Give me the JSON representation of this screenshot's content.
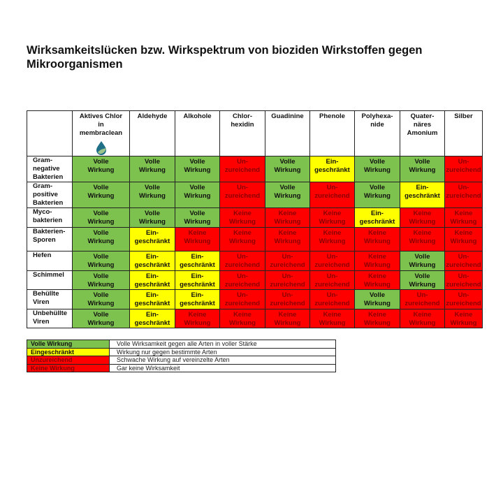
{
  "title": "Wirksamkeitslücken bzw. Wirkspektrum von bioziden Wirkstoffen gegen Mikroorganismen",
  "columns": [
    {
      "label": [
        "Aktives Chlor",
        "in",
        "membraclean"
      ],
      "logo": "water-drop-leaf-icon"
    },
    {
      "label": [
        "Aldehyde"
      ]
    },
    {
      "label": [
        "Alkohole"
      ]
    },
    {
      "label": [
        "Chlor-",
        "hexidin"
      ]
    },
    {
      "label": [
        "Guadinine"
      ]
    },
    {
      "label": [
        "Phenole"
      ]
    },
    {
      "label": [
        "Polyhexa-",
        "nide"
      ]
    },
    {
      "label": [
        "Quater-",
        "näres",
        "Amonium"
      ]
    },
    {
      "label": [
        "Silber"
      ]
    }
  ],
  "status_types": {
    "V": {
      "lines": [
        "Volle",
        "Wirkung"
      ],
      "bg": "#7dc24e",
      "fg": "#111111"
    },
    "E": {
      "lines": [
        "Ein-",
        "geschränkt"
      ],
      "bg": "#ffff00",
      "fg": "#111111"
    },
    "U": {
      "lines": [
        "Un-",
        "zureichend"
      ],
      "bg": "#ff0000",
      "fg": "#8a0000"
    },
    "K": {
      "lines": [
        "Keine",
        "Wirkung"
      ],
      "bg": "#ff0000",
      "fg": "#8a0000"
    }
  },
  "rows": [
    {
      "label": [
        "Gram-",
        "negative",
        "Bakterien"
      ],
      "cells": [
        "V",
        "V",
        "V",
        "U",
        "V",
        "E",
        "V",
        "V",
        "U"
      ]
    },
    {
      "label": [
        "Gram-",
        "positive",
        "Bakterien"
      ],
      "cells": [
        "V",
        "V",
        "V",
        "U",
        "V",
        "U",
        "V",
        "E",
        "U"
      ]
    },
    {
      "label": [
        "Myco-",
        "bakterien"
      ],
      "cells": [
        "V",
        "V",
        "V",
        "K",
        "K",
        "K",
        "E",
        "K",
        "K"
      ]
    },
    {
      "label": [
        "Bakterien-",
        "Sporen"
      ],
      "cells": [
        "V",
        "E",
        "K",
        "K",
        "K",
        "K",
        "K",
        "K",
        "K"
      ]
    },
    {
      "label": [
        "Hefen"
      ],
      "cells": [
        "V",
        "E",
        "E",
        "U",
        "U",
        "U",
        "K",
        "V",
        "U"
      ]
    },
    {
      "label": [
        "Schimmel"
      ],
      "cells": [
        "V",
        "E",
        "E",
        "U",
        "U",
        "U",
        "K",
        "V",
        "U"
      ]
    },
    {
      "label": [
        "Behüllte",
        "Viren"
      ],
      "cells": [
        "V",
        "E",
        "E",
        "U",
        "U",
        "U",
        "V",
        "U",
        "U"
      ]
    },
    {
      "label": [
        "Unbehüllte",
        "Viren"
      ],
      "cells": [
        "V",
        "E",
        "K",
        "K",
        "K",
        "K",
        "K",
        "K",
        "K"
      ]
    }
  ],
  "legend": [
    {
      "key": "Volle Wirkung",
      "type": "V",
      "description": "Volle Wirksamkeit gegen alle Arten in voller Stärke"
    },
    {
      "key": "Eingeschränkt",
      "type": "E",
      "description": "Wirkung nur gegen bestimmte Arten"
    },
    {
      "key": "Unzureichend",
      "type": "U",
      "description": "Schwache Wirkung auf vereinzelte Arten"
    },
    {
      "key": "Keine Wirkung",
      "type": "K",
      "description": "Gar keine Wirksamkeit"
    }
  ]
}
